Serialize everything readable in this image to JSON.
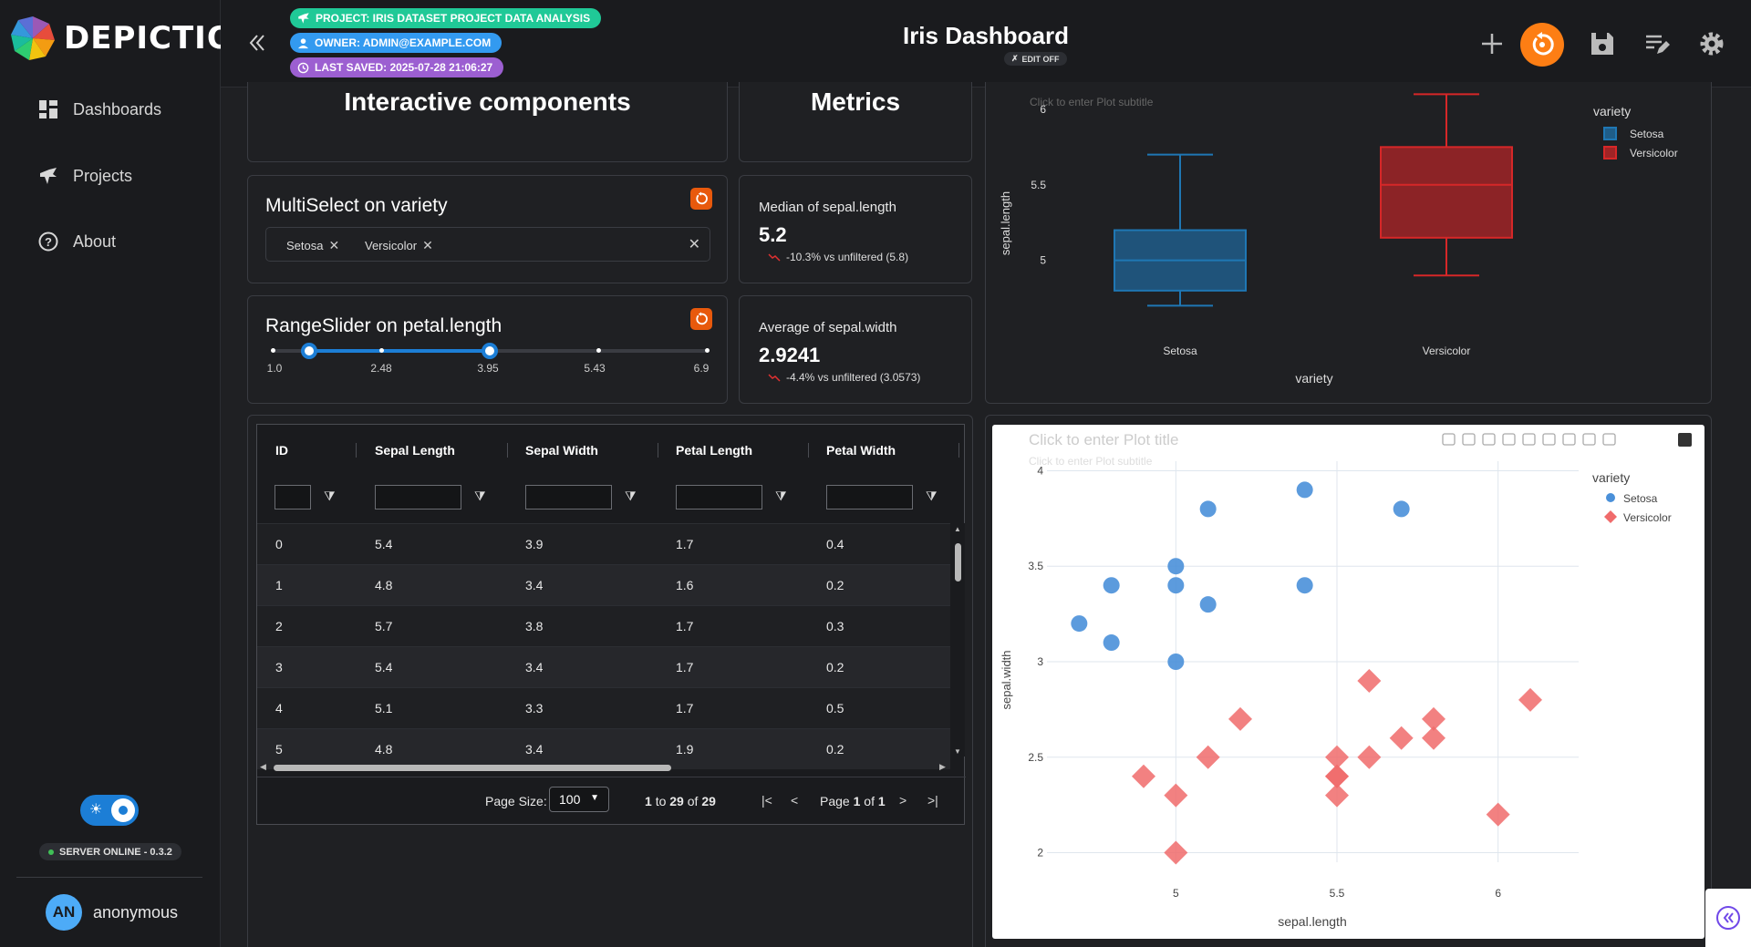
{
  "app": {
    "logo_text": "DEPICTIO"
  },
  "sidebar": {
    "items": [
      {
        "label": "Dashboards",
        "icon": "dashboard-icon"
      },
      {
        "label": "Projects",
        "icon": "projects-icon"
      },
      {
        "label": "About",
        "icon": "help-circle-icon"
      }
    ],
    "server_status": "SERVER ONLINE - 0.3.2",
    "user": {
      "initials": "AN",
      "name": "anonymous"
    }
  },
  "header": {
    "project_badge": "Project: Iris Dataset Project Data Analysis",
    "owner_badge": "Owner: admin@example.com",
    "saved_badge": "Last saved: 2025-07-28 21:06:27",
    "title": "Iris Dashboard",
    "edit_status": "EDIT OFF",
    "colors": {
      "project": "#20c997",
      "owner": "#339af0",
      "saved": "#9c5fd1",
      "accent": "#fd7e14"
    }
  },
  "sections": {
    "interactive_title": "Interactive components",
    "metrics_title": "Metrics"
  },
  "multiselect": {
    "title": "MultiSelect on variety",
    "selected": [
      "Setosa",
      "Versicolor"
    ]
  },
  "rangeslider": {
    "title": "RangeSlider on petal.length",
    "marks": [
      "1.0",
      "2.48",
      "3.95",
      "5.43",
      "6.9"
    ],
    "min": 1.0,
    "max": 6.9,
    "value": [
      1.5,
      3.95
    ]
  },
  "metrics": [
    {
      "label": "Median of sepal.length",
      "value": "5.2",
      "delta": "-10.3% vs unfiltered (5.8)"
    },
    {
      "label": "Average of sepal.width",
      "value": "2.9241",
      "delta": "-4.4% vs unfiltered (3.0573)"
    }
  ],
  "table": {
    "columns": [
      "ID",
      "Sepal Length",
      "Sepal Width",
      "Petal Length",
      "Petal Width"
    ],
    "rows": [
      [
        "0",
        "5.4",
        "3.9",
        "1.7",
        "0.4"
      ],
      [
        "1",
        "4.8",
        "3.4",
        "1.6",
        "0.2"
      ],
      [
        "2",
        "5.7",
        "3.8",
        "1.7",
        "0.3"
      ],
      [
        "3",
        "5.4",
        "3.4",
        "1.7",
        "0.2"
      ],
      [
        "4",
        "5.1",
        "3.3",
        "1.7",
        "0.5"
      ],
      [
        "5",
        "4.8",
        "3.4",
        "1.9",
        "0.2"
      ]
    ],
    "page_size_label": "Page Size:",
    "page_size": "100",
    "range_from": "1",
    "range_to_word": "to",
    "range_to": "29",
    "range_of_word": "of",
    "range_total": "29",
    "page_word": "Page",
    "page_current": "1",
    "page_of_word": "of",
    "page_total": "1"
  },
  "chart_data": [
    {
      "type": "box",
      "subtitle": "Click to enter Plot subtitle",
      "xlabel": "variety",
      "ylabel": "sepal.length",
      "ylim": [
        4.6,
        6.12
      ],
      "yticks": [
        "5",
        "5.5",
        "6"
      ],
      "legend_title": "variety",
      "series": [
        {
          "name": "Setosa",
          "color": "#1f77b4",
          "min": 4.7,
          "q1": 4.8,
          "median": 5.0,
          "q3": 5.2,
          "max": 5.7
        },
        {
          "name": "Versicolor",
          "color": "#d62728",
          "min": 4.9,
          "q1": 5.15,
          "median": 5.5,
          "q3": 5.75,
          "max": 6.1
        }
      ]
    },
    {
      "type": "scatter",
      "title": "Click to enter Plot title",
      "subtitle": "Click to enter Plot subtitle",
      "xlabel": "sepal.length",
      "ylabel": "sepal.width",
      "xlim": [
        4.6,
        6.25
      ],
      "ylim": [
        1.95,
        4.05
      ],
      "xticks": [
        "5",
        "5.5",
        "6"
      ],
      "yticks": [
        "2",
        "2.5",
        "3",
        "3.5",
        "4"
      ],
      "legend_title": "variety",
      "series": [
        {
          "name": "Setosa",
          "color": "#4a90d9",
          "marker": "circle",
          "x": [
            4.7,
            4.8,
            4.8,
            5.0,
            5.0,
            5.0,
            5.1,
            5.1,
            5.4,
            5.4,
            5.7
          ],
          "y": [
            3.2,
            3.4,
            3.1,
            3.4,
            3.5,
            3.0,
            3.8,
            3.3,
            3.9,
            3.4,
            3.8
          ]
        },
        {
          "name": "Versicolor",
          "color": "#f06b6b",
          "marker": "diamond",
          "x": [
            4.9,
            5.0,
            5.0,
            5.1,
            5.2,
            5.5,
            5.5,
            5.5,
            5.5,
            5.6,
            5.6,
            5.7,
            5.8,
            5.8,
            6.0,
            6.1
          ],
          "y": [
            2.4,
            2.3,
            2.0,
            2.5,
            2.7,
            2.5,
            2.4,
            2.3,
            2.4,
            2.9,
            2.5,
            2.6,
            2.7,
            2.6,
            2.2,
            2.8
          ]
        }
      ]
    }
  ]
}
